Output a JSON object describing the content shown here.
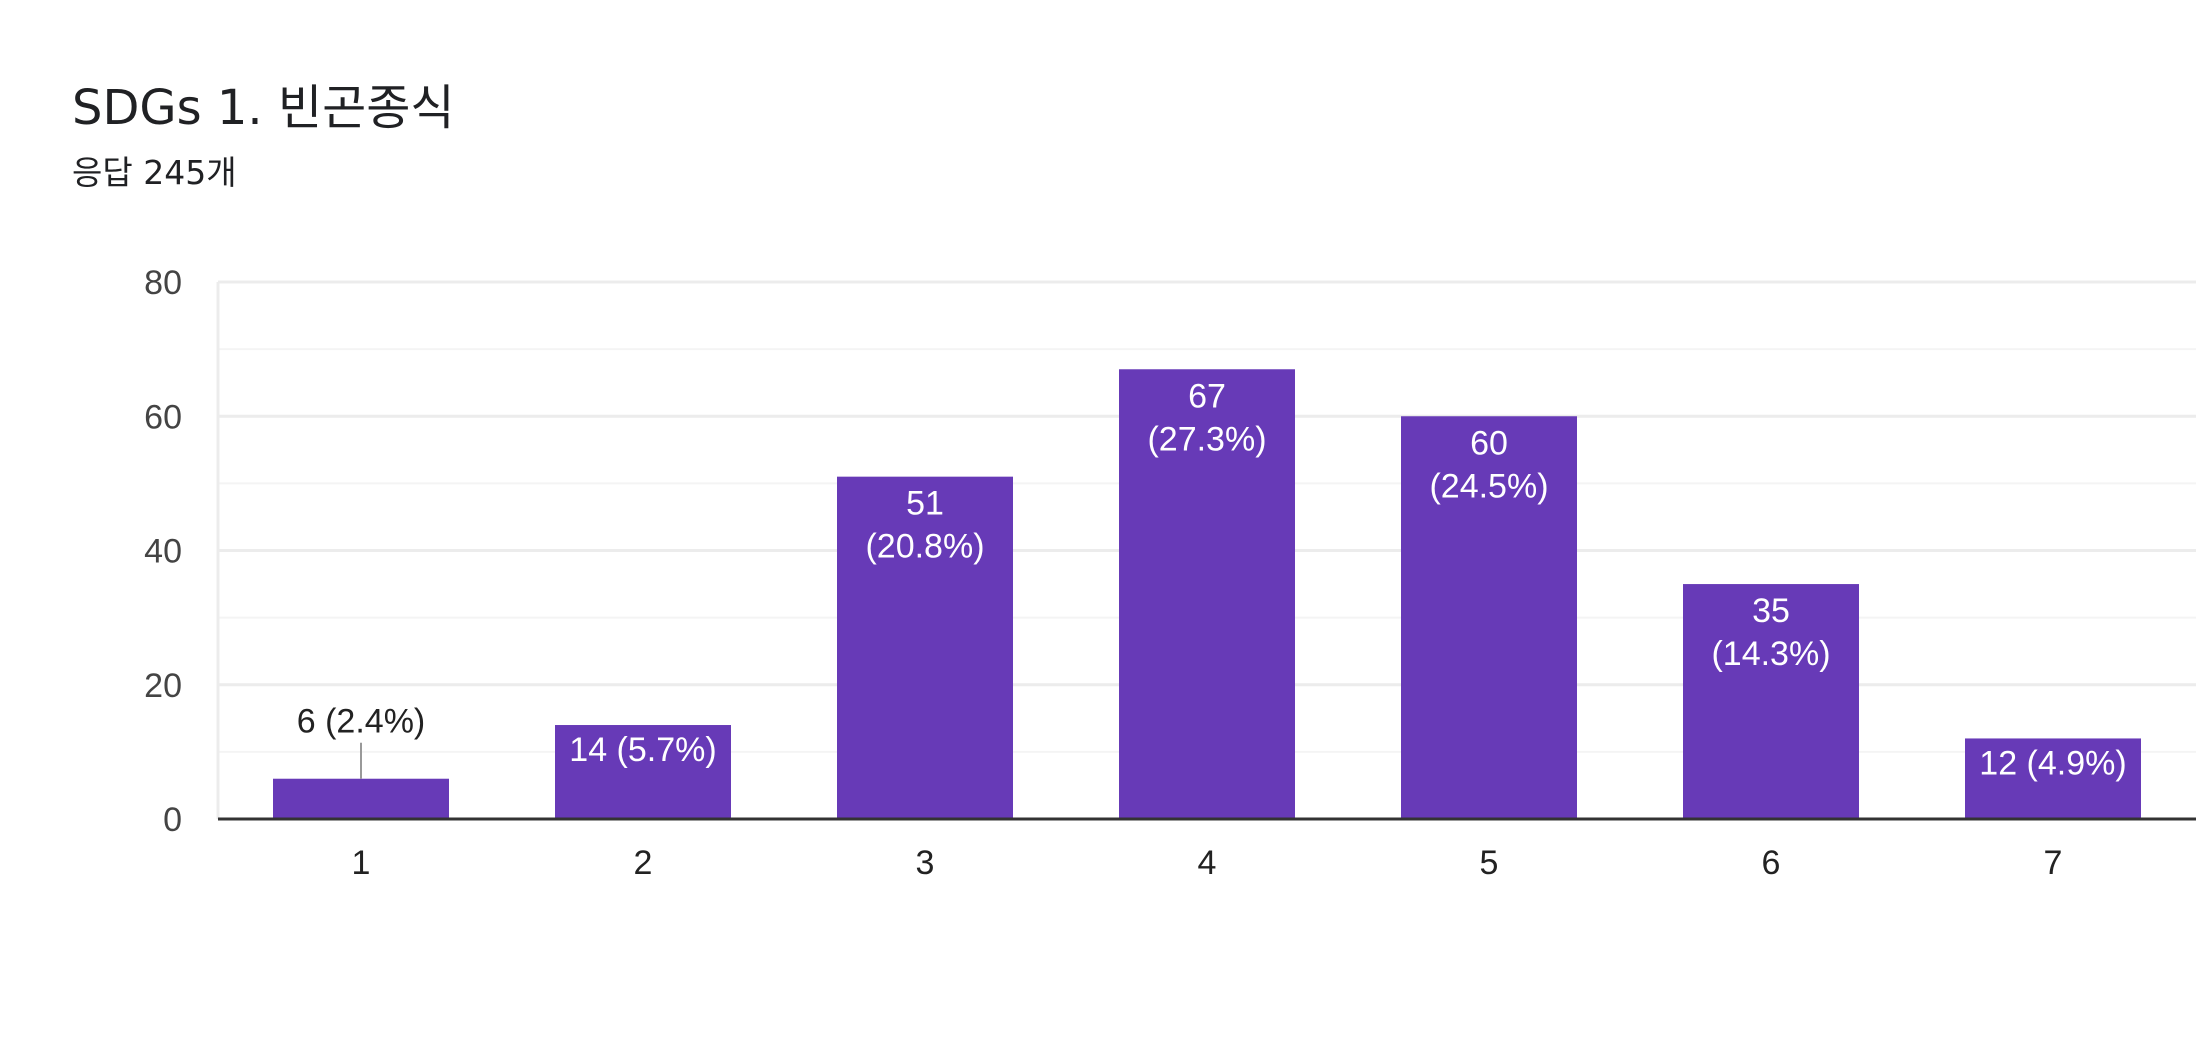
{
  "header": {
    "title": "SDGs 1. 빈곤종식",
    "subtitle": "응답 245개"
  },
  "colors": {
    "bar": "#673AB7",
    "gridline": "#ececec",
    "axis": "#333333",
    "tick_text": "#444444",
    "label_inside": "#ffffff",
    "label_outside": "#222222",
    "leader_line": "#999999"
  },
  "chart_data": {
    "type": "bar",
    "categories": [
      "1",
      "2",
      "3",
      "4",
      "5",
      "6",
      "7"
    ],
    "values": [
      6,
      14,
      51,
      67,
      60,
      35,
      12
    ],
    "data_labels": [
      [
        "6 (2.4%)"
      ],
      [
        "14 (5.7%)"
      ],
      [
        "51",
        "(20.8%)"
      ],
      [
        "67",
        "(27.3%)"
      ],
      [
        "60",
        "(24.5%)"
      ],
      [
        "35",
        "(14.3%)"
      ],
      [
        "12 (4.9%)"
      ]
    ],
    "ylim": [
      0,
      80
    ],
    "yticks": [
      0,
      20,
      40,
      60,
      80
    ],
    "minor_gridlines": [
      10,
      30,
      50,
      70
    ],
    "grid": true,
    "legend": "none",
    "title": "",
    "xlabel": "",
    "ylabel": ""
  }
}
